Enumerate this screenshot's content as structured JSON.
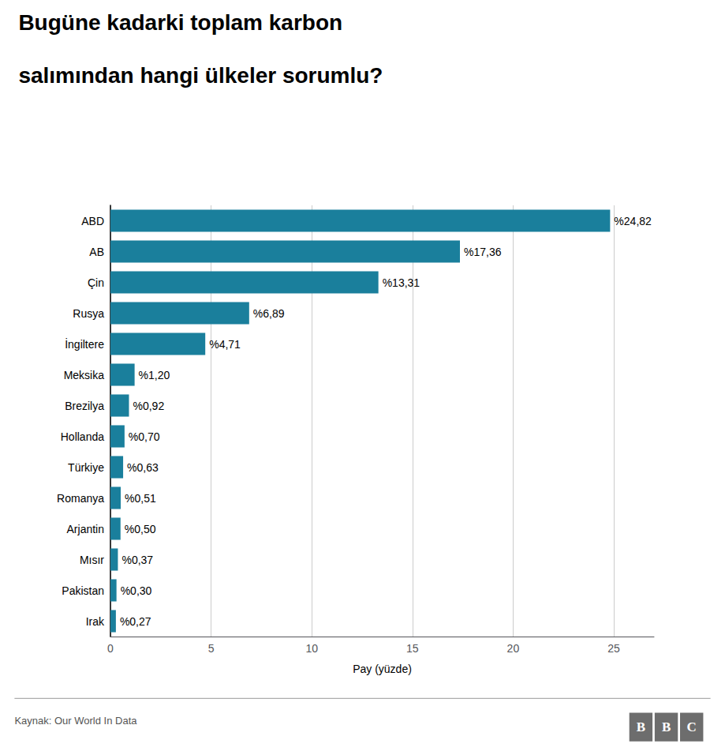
{
  "chart_data": {
    "type": "bar",
    "orientation": "horizontal",
    "title": "Bugüne kadarki toplam karbon",
    "subtitle": "salımından hangi ülkeler sorumlu?",
    "categories": [
      "ABD",
      "AB",
      "Çin",
      "Rusya",
      "İngiltere",
      "Meksika",
      "Brezilya",
      "Hollanda",
      "Türkiye",
      "Romanya",
      "Arjantin",
      "Mısır",
      "Pakistan",
      "Irak"
    ],
    "values": [
      24.82,
      17.36,
      13.31,
      6.89,
      4.71,
      1.2,
      0.92,
      0.7,
      0.63,
      0.51,
      0.5,
      0.37,
      0.3,
      0.27
    ],
    "value_labels": [
      "%24,82",
      "%17,36",
      "%13,31",
      "%6,89",
      "%4,71",
      "%1,20",
      "%0,92",
      "%0,70",
      "%0,63",
      "%0,51",
      "%0,50",
      "%0,37",
      "%0,30",
      "%0,27"
    ],
    "data_labels": true,
    "color": "#1a7f9c",
    "xlabel": "Pay (yüzde)",
    "xlim": [
      0,
      27
    ],
    "xticks": [
      0,
      5,
      10,
      15,
      20,
      25
    ],
    "grid": true,
    "annotations": [
      "Kaynak: Our World In Data",
      "B",
      "B",
      "C"
    ]
  }
}
